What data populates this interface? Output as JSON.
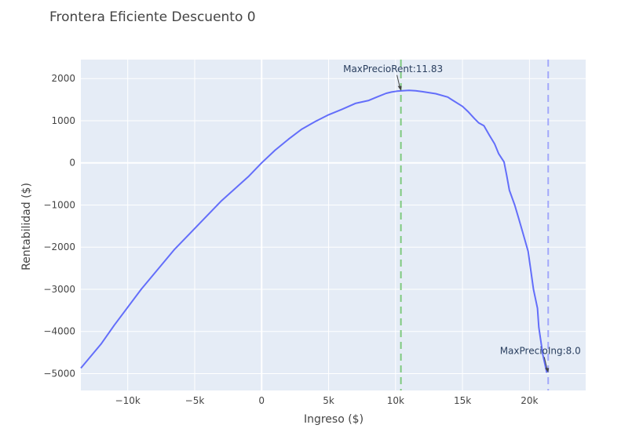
{
  "chart_data": {
    "type": "line",
    "title": "Frontera Eficiente Descuento 0",
    "xlabel": "Ingreso ($)",
    "ylabel": "Rentabilidad ($)",
    "xlim": [
      -13500,
      24200
    ],
    "ylim": [
      -5400,
      2450
    ],
    "x_ticks": [
      -10000,
      -5000,
      0,
      5000,
      10000,
      15000,
      20000
    ],
    "x_tick_labels": [
      "−10k",
      "−5k",
      "0",
      "5k",
      "10k",
      "15k",
      "20k"
    ],
    "y_ticks": [
      -5000,
      -4000,
      -3000,
      -2000,
      -1000,
      0,
      1000,
      2000
    ],
    "y_tick_labels": [
      "−5000",
      "−4000",
      "−3000",
      "−2000",
      "−1000",
      "0",
      "1000",
      "2000"
    ],
    "grid": true,
    "colors": {
      "line": "#636efa",
      "plot_bg": "#e5ecf6",
      "grid": "#ffffff",
      "vline_rent": "#7fc97f",
      "vline_ing": "#a3a8fb"
    },
    "series": [
      {
        "x": [
          -13500,
          -12000,
          -11000,
          -9000,
          -6500,
          -3000,
          -1000,
          0,
          1000,
          2000,
          3000,
          4000,
          5000,
          6000,
          6500,
          7000,
          8000,
          8600,
          9300,
          9700,
          10100,
          10500,
          11000,
          11500,
          12000,
          13000,
          13900,
          14200,
          15000,
          15400,
          15900,
          16200,
          16600,
          17000,
          17400,
          17700,
          18100,
          18300,
          18500,
          18900,
          19200,
          19500,
          19900,
          20100,
          20300,
          20600,
          20700,
          21000,
          21300
        ],
        "y": [
          -4870,
          -4300,
          -3850,
          -3000,
          -2050,
          -900,
          -330,
          0,
          300,
          560,
          800,
          980,
          1140,
          1270,
          1340,
          1410,
          1480,
          1560,
          1650,
          1680,
          1700,
          1710,
          1720,
          1710,
          1690,
          1640,
          1560,
          1500,
          1340,
          1220,
          1050,
          950,
          880,
          660,
          450,
          220,
          20,
          -300,
          -650,
          -1000,
          -1320,
          -1650,
          -2100,
          -2550,
          -3000,
          -3450,
          -3900,
          -4550,
          -4980
        ]
      }
    ],
    "vlines": [
      {
        "x": 10400,
        "style": "dash",
        "color": "vline_rent"
      },
      {
        "x": 21400,
        "style": "dash",
        "color": "vline_ing"
      }
    ],
    "annotations": [
      {
        "text": "MaxPrecioRent:11.83",
        "x": 10400,
        "y": 1710
      },
      {
        "text": "MaxPrecioIng:8.0",
        "x": 21400,
        "y": -4980
      }
    ]
  }
}
